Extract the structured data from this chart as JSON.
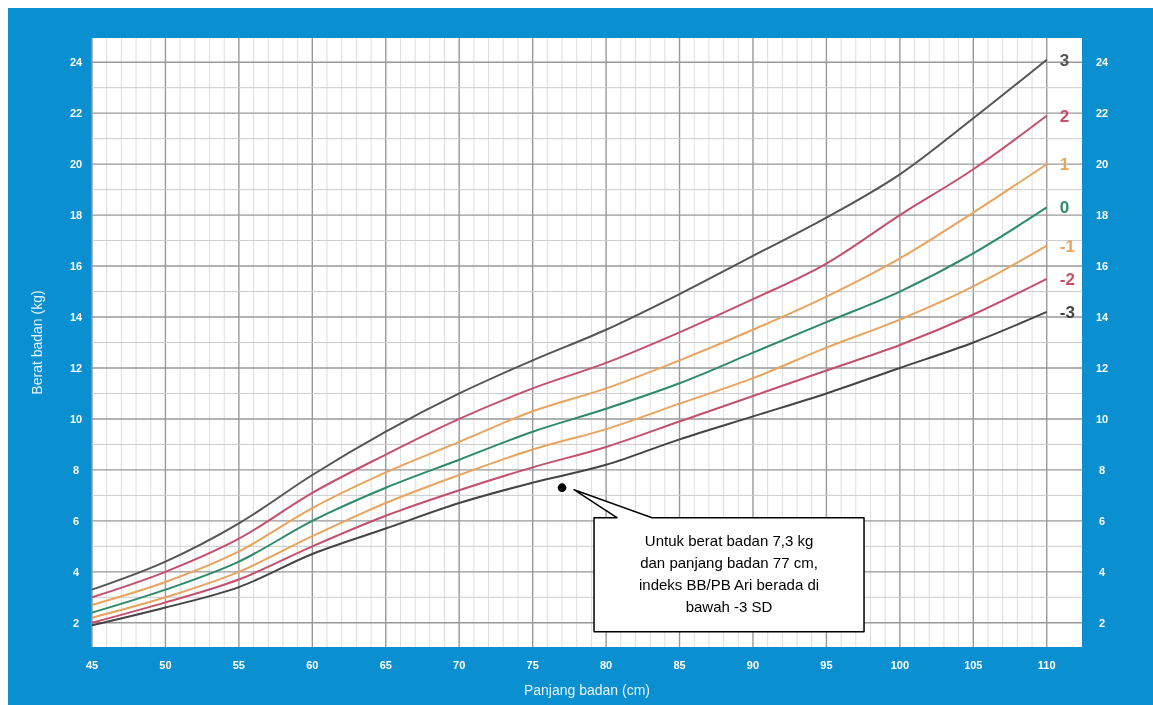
{
  "chart_data": {
    "type": "line",
    "xlabel": "Panjang badan (cm)",
    "ylabel": "Berat badan (kg)",
    "x": [
      45,
      50,
      55,
      60,
      65,
      70,
      75,
      80,
      85,
      90,
      95,
      100,
      105,
      110
    ],
    "xlim": [
      45,
      112.4
    ],
    "xticks": [
      45,
      {
        "value": 46,
        "label": null
      },
      {
        "value": 47,
        "label": null
      },
      {
        "value": 48,
        "label": null
      },
      {
        "value": 49,
        "label": null
      },
      50,
      {
        "value": 51,
        "label": null
      },
      {
        "value": 52,
        "label": null
      },
      {
        "value": 53,
        "label": null
      },
      {
        "value": 54,
        "label": null
      },
      55,
      {
        "value": 56,
        "label": null
      },
      {
        "value": 57,
        "label": null
      },
      {
        "value": 58,
        "label": null
      },
      {
        "value": 59,
        "label": null
      },
      60,
      {
        "value": 61,
        "label": null
      },
      {
        "value": 62,
        "label": null
      },
      {
        "value": 63,
        "label": null
      },
      {
        "value": 64,
        "label": null
      },
      65,
      {
        "value": 66,
        "label": null
      },
      {
        "value": 67,
        "label": null
      },
      {
        "value": 68,
        "label": null
      },
      {
        "value": 69,
        "label": null
      },
      70,
      {
        "value": 71,
        "label": null
      },
      {
        "value": 72,
        "label": null
      },
      {
        "value": 73,
        "label": null
      },
      {
        "value": 74,
        "label": null
      },
      75,
      {
        "value": 76,
        "label": null
      },
      {
        "value": 77,
        "label": null
      },
      {
        "value": 78,
        "label": null
      },
      {
        "value": 79,
        "label": null
      },
      80,
      {
        "value": 81,
        "label": null
      },
      {
        "value": 82,
        "label": null
      },
      {
        "value": 83,
        "label": null
      },
      {
        "value": 84,
        "label": null
      },
      85,
      {
        "value": 86,
        "label": null
      },
      {
        "value": 87,
        "label": null
      },
      {
        "value": 88,
        "label": null
      },
      {
        "value": 89,
        "label": null
      },
      90,
      {
        "value": 91,
        "label": null
      },
      {
        "value": 92,
        "label": null
      },
      {
        "value": 93,
        "label": null
      },
      {
        "value": 94,
        "label": null
      },
      95,
      {
        "value": 96,
        "label": null
      },
      {
        "value": 97,
        "label": null
      },
      {
        "value": 98,
        "label": null
      },
      {
        "value": 99,
        "label": null
      },
      100,
      {
        "value": 101,
        "label": null
      },
      {
        "value": 102,
        "label": null
      },
      {
        "value": 103,
        "label": null
      },
      {
        "value": 104,
        "label": null
      },
      105,
      {
        "value": 106,
        "label": null
      },
      {
        "value": 107,
        "label": null
      },
      {
        "value": 108,
        "label": null
      },
      {
        "value": 109,
        "label": null
      },
      110
    ],
    "ylim": [
      1.05,
      24.95
    ],
    "yticks": [
      2,
      {
        "value": 3,
        "label": null
      },
      4,
      {
        "value": 5,
        "label": null
      },
      6,
      {
        "value": 7,
        "label": null
      },
      8,
      {
        "value": 9,
        "label": null
      },
      10,
      {
        "value": 11,
        "label": null
      },
      12,
      {
        "value": 13,
        "label": null
      },
      14,
      {
        "value": 15,
        "label": null
      },
      16,
      {
        "value": 17,
        "label": null
      },
      18,
      {
        "value": 19,
        "label": null
      },
      20,
      {
        "value": 21,
        "label": null
      },
      22,
      {
        "value": 23,
        "label": null
      },
      24
    ],
    "y2lim": [
      1.05,
      24.95
    ],
    "y2ticks": [
      2,
      4,
      6,
      8,
      10,
      12,
      14,
      16,
      18,
      20,
      22,
      24
    ],
    "grid": true,
    "legend": false,
    "line_style": "solid",
    "marker": "none",
    "series": [
      {
        "name": "3",
        "color": "#555555",
        "values": [
          3.3,
          4.4,
          5.9,
          7.8,
          9.5,
          11.0,
          12.3,
          13.5,
          14.9,
          16.4,
          17.9,
          19.6,
          21.8,
          24.1
        ]
      },
      {
        "name": "2",
        "color": "#c4506e",
        "values": [
          3.0,
          4.0,
          5.3,
          7.1,
          8.6,
          10.0,
          11.2,
          12.2,
          13.4,
          14.7,
          16.1,
          18.0,
          19.8,
          21.9
        ]
      },
      {
        "name": "1",
        "color": "#e8a45e",
        "values": [
          2.7,
          3.6,
          4.8,
          6.5,
          7.9,
          9.1,
          10.3,
          11.2,
          12.3,
          13.5,
          14.8,
          16.3,
          18.1,
          20.0
        ]
      },
      {
        "name": "0",
        "color": "#2e8b6a",
        "values": [
          2.4,
          3.3,
          4.4,
          6.0,
          7.3,
          8.4,
          9.5,
          10.4,
          11.4,
          12.6,
          13.8,
          15.0,
          16.5,
          18.3
        ]
      },
      {
        "name": "-1",
        "color": "#e8a45e",
        "values": [
          2.2,
          3.0,
          4.0,
          5.4,
          6.7,
          7.8,
          8.8,
          9.6,
          10.6,
          11.6,
          12.8,
          13.9,
          15.2,
          16.8
        ]
      },
      {
        "name": "-2",
        "color": "#c4506e",
        "values": [
          2.0,
          2.8,
          3.7,
          5.0,
          6.2,
          7.2,
          8.1,
          8.9,
          9.9,
          10.9,
          11.9,
          12.9,
          14.1,
          15.5
        ]
      },
      {
        "name": "-3",
        "color": "#444444",
        "values": [
          1.9,
          2.6,
          3.4,
          4.7,
          5.7,
          6.7,
          7.5,
          8.2,
          9.2,
          10.1,
          11.0,
          12.0,
          13.0,
          14.2
        ]
      },
      {
        "type": "scatter",
        "x": [
          77
        ],
        "values": [
          7.3
        ],
        "color": "#000000",
        "marker": "circle"
      }
    ],
    "annotations": [
      "Untuk berat badan 7,3 kg dan panjang badan 77 cm, indeks BB/PB Ari berada di bawah -3 SD"
    ]
  }
}
